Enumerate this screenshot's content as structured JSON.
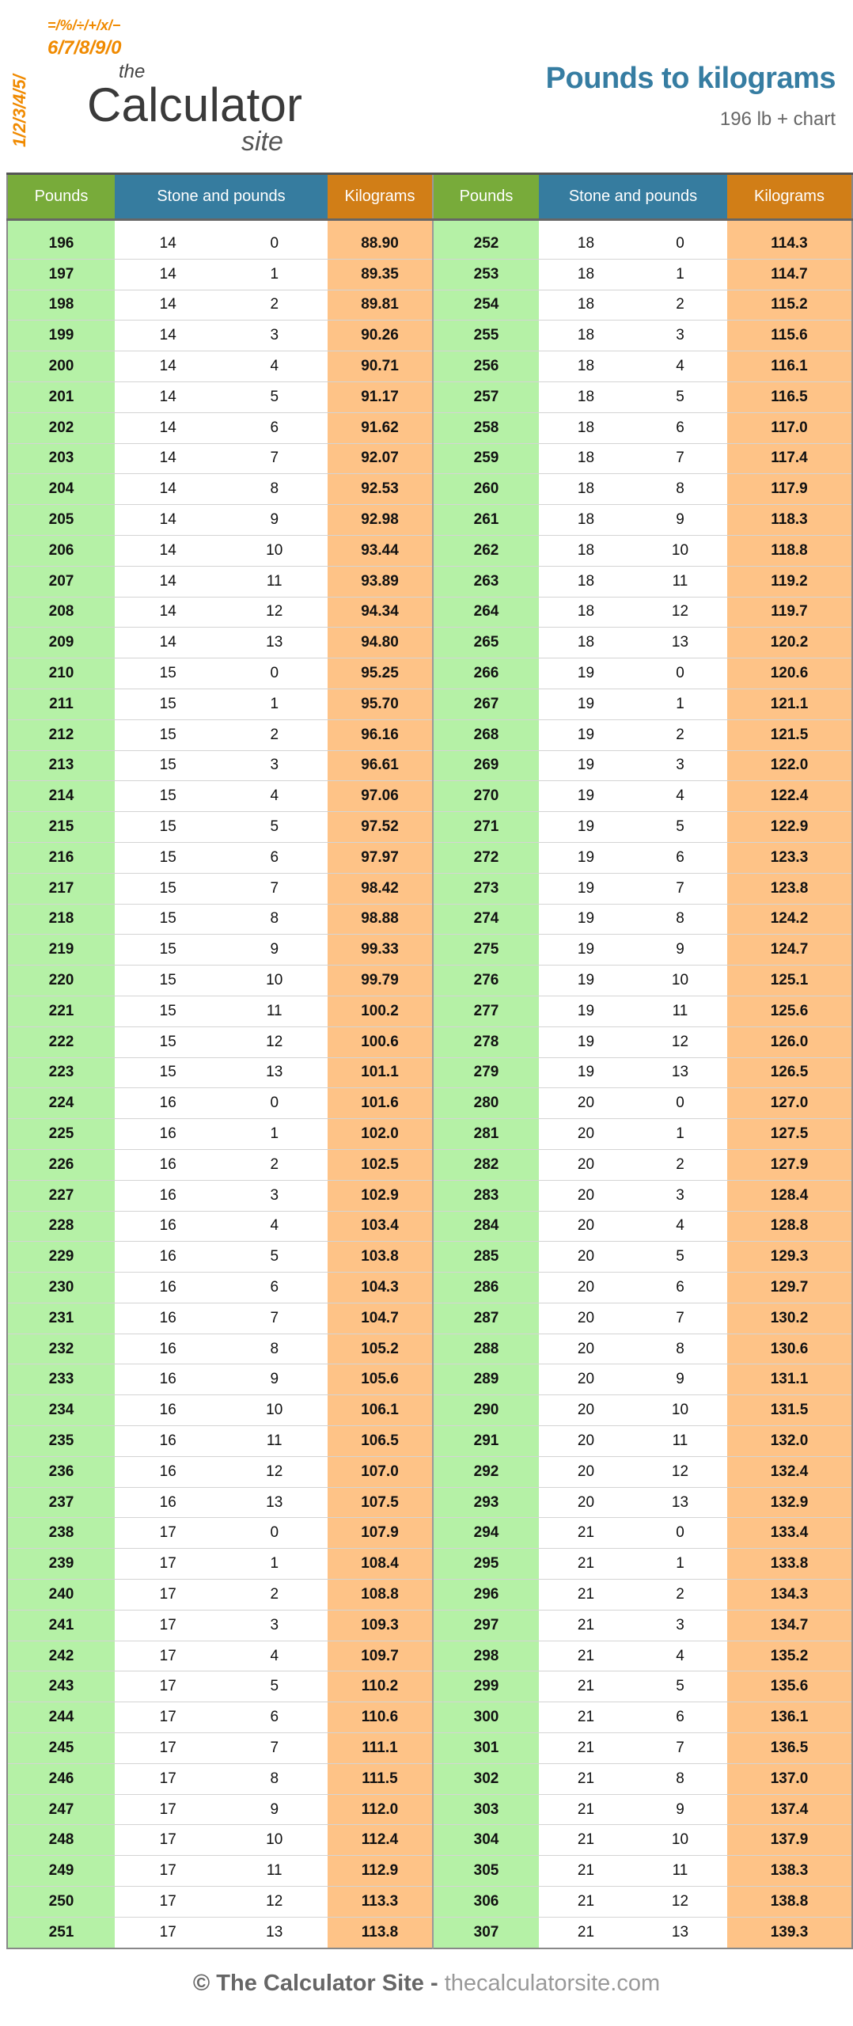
{
  "logo": {
    "the": "the",
    "name": "Calculator",
    "site": "site",
    "symbols": "1/2/3/4/5/6/7/8/9/0 = % ÷ + x −"
  },
  "header": {
    "title": "Pounds to kilograms",
    "subtitle": "196 lb + chart"
  },
  "colors": {
    "pounds_header": "#78ab3a",
    "stone_header": "#367c9f",
    "kg_header": "#d17e17",
    "pounds_cell": "#b5f1a6",
    "kg_cell": "#fec387",
    "title": "#367da2"
  },
  "table": {
    "columns": [
      "Pounds",
      "Stone and pounds",
      "Kilograms",
      "Pounds",
      "Stone and pounds",
      "Kilograms"
    ],
    "left": {
      "pounds_start": 196,
      "kg": [
        "88.90",
        "89.35",
        "89.81",
        "90.26",
        "90.71",
        "91.17",
        "91.62",
        "92.07",
        "92.53",
        "92.98",
        "93.44",
        "93.89",
        "94.34",
        "94.80",
        "95.25",
        "95.70",
        "96.16",
        "96.61",
        "97.06",
        "97.52",
        "97.97",
        "98.42",
        "98.88",
        "99.33",
        "99.79",
        "100.2",
        "100.6",
        "101.1",
        "101.6",
        "102.0",
        "102.5",
        "102.9",
        "103.4",
        "103.8",
        "104.3",
        "104.7",
        "105.2",
        "105.6",
        "106.1",
        "106.5",
        "107.0",
        "107.5",
        "107.9",
        "108.4",
        "108.8",
        "109.3",
        "109.7",
        "110.2",
        "110.6",
        "111.1",
        "111.5",
        "112.0",
        "112.4",
        "112.9",
        "113.3",
        "113.8"
      ]
    },
    "right": {
      "pounds_start": 252,
      "kg": [
        "114.3",
        "114.7",
        "115.2",
        "115.6",
        "116.1",
        "116.5",
        "117.0",
        "117.4",
        "117.9",
        "118.3",
        "118.8",
        "119.2",
        "119.7",
        "120.2",
        "120.6",
        "121.1",
        "121.5",
        "122.0",
        "122.4",
        "122.9",
        "123.3",
        "123.8",
        "124.2",
        "124.7",
        "125.1",
        "125.6",
        "126.0",
        "126.5",
        "127.0",
        "127.5",
        "127.9",
        "128.4",
        "128.8",
        "129.3",
        "129.7",
        "130.2",
        "130.6",
        "131.1",
        "131.5",
        "132.0",
        "132.4",
        "132.9",
        "133.4",
        "133.8",
        "134.3",
        "134.7",
        "135.2",
        "135.6",
        "136.1",
        "136.5",
        "137.0",
        "137.4",
        "137.9",
        "138.3",
        "138.8",
        "139.3"
      ]
    }
  },
  "footer": {
    "brand": "© The Calculator Site",
    "dash": " - ",
    "url": "thecalculatorsite.com"
  }
}
